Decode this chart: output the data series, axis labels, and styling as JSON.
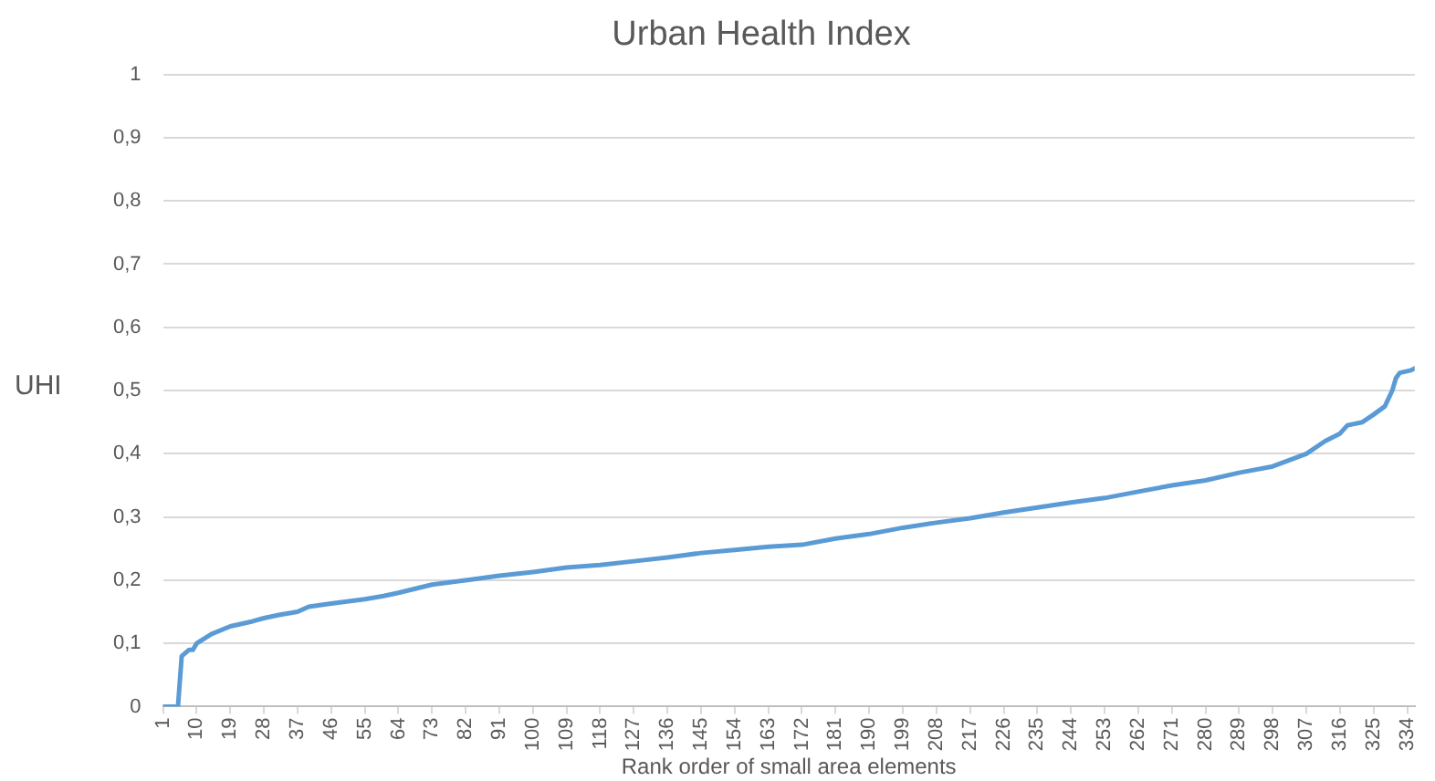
{
  "chart_data": {
    "type": "line",
    "title": "Urban Health Index",
    "xlabel": "Rank order of small area elements",
    "ylabel": "UHI",
    "xlim": [
      1,
      336
    ],
    "xticks": [
      1,
      10,
      19,
      28,
      37,
      46,
      55,
      64,
      73,
      82,
      91,
      100,
      109,
      118,
      127,
      136,
      145,
      154,
      163,
      172,
      181,
      190,
      199,
      208,
      217,
      226,
      235,
      244,
      253,
      262,
      271,
      280,
      289,
      298,
      307,
      316,
      325,
      334
    ],
    "ylim": [
      0,
      1
    ],
    "yticks": [
      0,
      {
        "value": 0.1,
        "label": "0,1"
      },
      {
        "value": 0.2,
        "label": "0,2"
      },
      {
        "value": 0.3,
        "label": "0,3"
      },
      {
        "value": 0.4,
        "label": "0,4"
      },
      {
        "value": 0.5,
        "label": "0,5"
      },
      {
        "value": 0.6,
        "label": "0,6"
      },
      {
        "value": 0.7,
        "label": "0,7"
      },
      {
        "value": 0.8,
        "label": "0,8"
      },
      {
        "value": 0.9,
        "label": "0,9"
      },
      1
    ],
    "grid": "y",
    "legend": false,
    "marker": "none",
    "line_style": "solid",
    "series": [
      {
        "color": "#5b9bd5",
        "x": [
          1,
          5,
          6,
          8,
          9,
          10,
          14,
          19,
          25,
          28,
          32,
          37,
          40,
          46,
          55,
          60,
          64,
          73,
          82,
          91,
          100,
          109,
          118,
          127,
          136,
          145,
          154,
          163,
          172,
          181,
          190,
          199,
          208,
          217,
          226,
          235,
          244,
          253,
          262,
          271,
          280,
          289,
          298,
          307,
          312,
          316,
          318,
          322,
          325,
          328,
          330,
          331,
          332,
          335,
          336
        ],
        "values": [
          0,
          0,
          0.08,
          0.09,
          0.09,
          0.1,
          0.115,
          0.127,
          0.135,
          0.14,
          0.145,
          0.15,
          0.158,
          0.163,
          0.17,
          0.175,
          0.18,
          0.193,
          0.2,
          0.207,
          0.213,
          0.22,
          0.224,
          0.23,
          0.236,
          0.243,
          0.248,
          0.253,
          0.256,
          0.266,
          0.273,
          0.283,
          0.291,
          0.298,
          0.307,
          0.315,
          0.323,
          0.33,
          0.34,
          0.35,
          0.358,
          0.37,
          0.38,
          0.4,
          0.42,
          0.432,
          0.445,
          0.45,
          0.462,
          0.475,
          0.5,
          0.52,
          0.528,
          0.532,
          0.535
        ]
      }
    ]
  }
}
